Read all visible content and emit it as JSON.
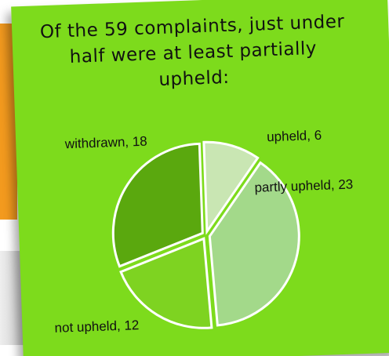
{
  "chart_data": {
    "type": "pie",
    "title": "Of the 59 complaints, just under half were at least partially upheld:",
    "values": [
      6,
      23,
      12,
      18
    ],
    "value_labels": [
      "upheld, 6",
      "partly upheld, 23",
      "not upheld, 12",
      "withdrawn, 18"
    ],
    "colors": [
      "#c9e6b3",
      "#a3d98a",
      "#7ed321",
      "#5aa80e"
    ],
    "background": "#7ddb1c"
  }
}
